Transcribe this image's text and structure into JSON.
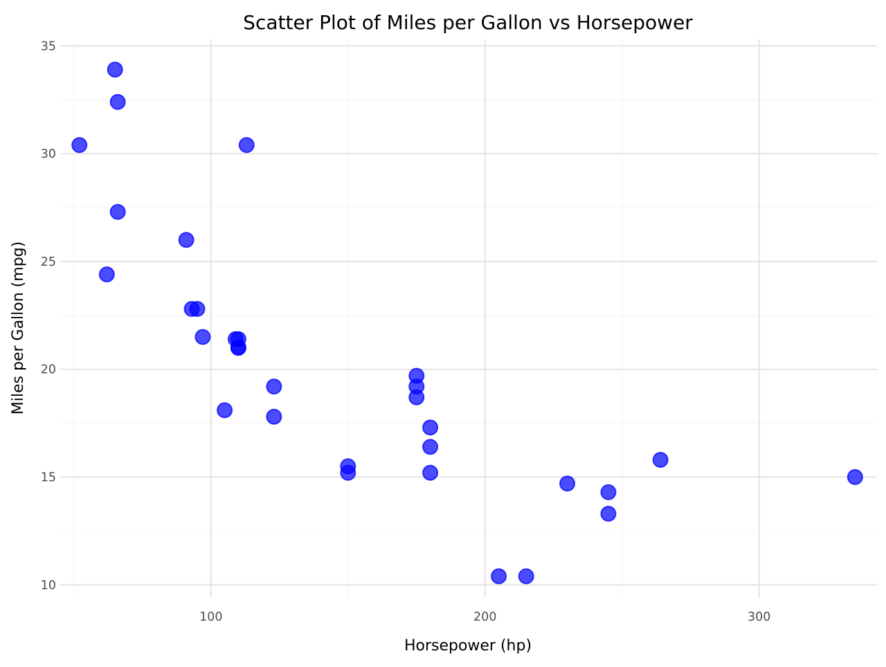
{
  "chart_data": {
    "type": "scatter",
    "title": "Scatter Plot of Miles per Gallon vs Horsepower",
    "xlabel": "Horsepower (hp)",
    "ylabel": "Miles per Gallon (mpg)",
    "xlim": [
      45,
      343
    ],
    "ylim": [
      9.4,
      35.3
    ],
    "x_ticks": [
      100,
      200,
      300
    ],
    "x_tick_labels": [
      "100",
      "200",
      "300"
    ],
    "x_minor_ticks": [
      50,
      150,
      250
    ],
    "y_ticks": [
      10,
      15,
      20,
      25,
      30,
      35
    ],
    "y_tick_labels": [
      "10",
      "15",
      "20",
      "25",
      "30",
      "35"
    ],
    "y_minor_ticks": [
      12.5,
      17.5,
      22.5,
      27.5,
      32.5
    ],
    "grid": true,
    "legend": "none",
    "point_color": "#0000ff",
    "point_opacity": 0.7,
    "x": [
      110,
      110,
      93,
      110,
      175,
      105,
      245,
      62,
      95,
      123,
      123,
      180,
      180,
      180,
      205,
      215,
      230,
      66,
      52,
      65,
      97,
      150,
      150,
      245,
      175,
      66,
      91,
      113,
      264,
      175,
      335,
      109
    ],
    "y": [
      21.0,
      21.0,
      22.8,
      21.4,
      18.7,
      18.1,
      14.3,
      24.4,
      22.8,
      19.2,
      17.8,
      16.4,
      17.3,
      15.2,
      10.4,
      10.4,
      14.7,
      32.4,
      30.4,
      33.9,
      21.5,
      15.5,
      15.2,
      13.3,
      19.2,
      27.3,
      26.0,
      30.4,
      15.8,
      19.7,
      15.0,
      21.4
    ]
  }
}
